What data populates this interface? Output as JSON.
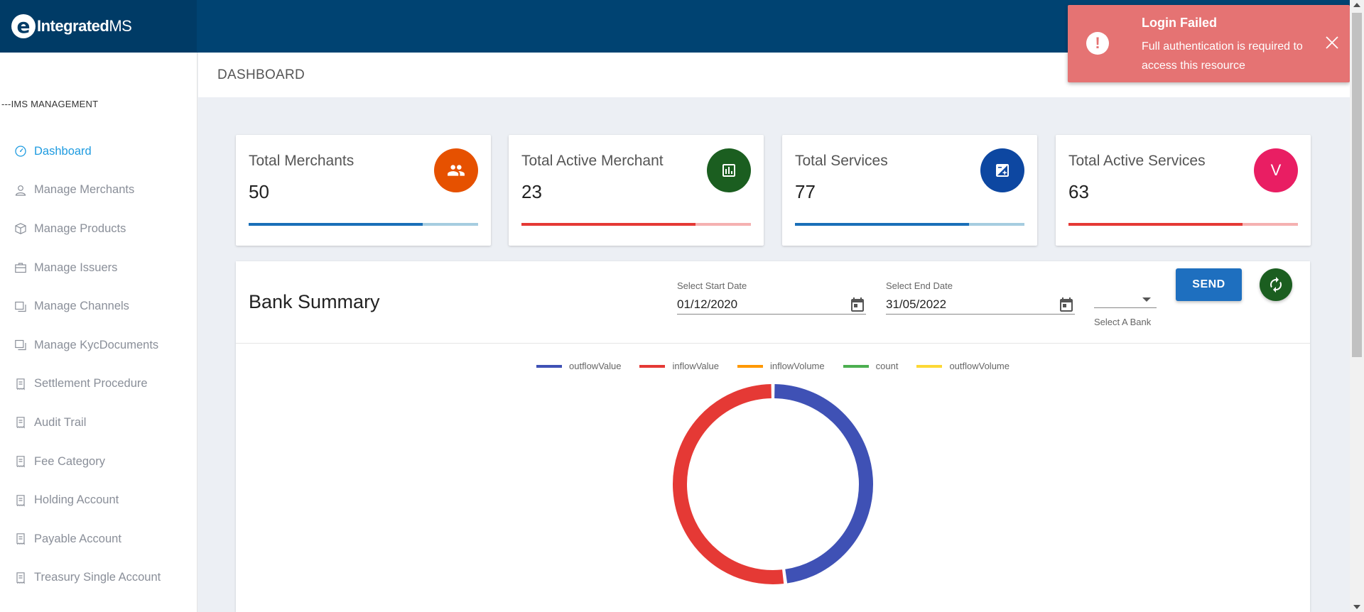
{
  "brand": {
    "mark": "e",
    "name_bold": "Integrated",
    "name_light": "MS"
  },
  "sidebar": {
    "heading": "---IMS MANAGEMENT",
    "items": [
      {
        "label": "Dashboard",
        "icon": "dashboard-icon",
        "active": true
      },
      {
        "label": "Manage Merchants",
        "icon": "user-icon"
      },
      {
        "label": "Manage Products",
        "icon": "box-icon"
      },
      {
        "label": "Manage Issuers",
        "icon": "briefcase-icon"
      },
      {
        "label": "Manage Channels",
        "icon": "copy-icon"
      },
      {
        "label": "Manage KycDocuments",
        "icon": "copy-icon"
      },
      {
        "label": "Settlement Procedure",
        "icon": "receipt-icon"
      },
      {
        "label": "Audit Trail",
        "icon": "receipt-icon"
      },
      {
        "label": "Fee Category",
        "icon": "receipt-icon"
      },
      {
        "label": "Holding Account",
        "icon": "receipt-icon"
      },
      {
        "label": "Payable Account",
        "icon": "receipt-icon"
      },
      {
        "label": "Treasury Single Account",
        "icon": "receipt-icon"
      }
    ]
  },
  "header": {
    "title": "DASHBOARD"
  },
  "cards": [
    {
      "title": "Total Merchants",
      "value": "50",
      "badge_color": "#e65100",
      "icon": "people-icon",
      "bar_color": "#1a6fb8",
      "bar_rest": "#a6cde0",
      "progress": 0.76
    },
    {
      "title": "Total Active Merchant",
      "value": "23",
      "badge_color": "#1b5e20",
      "icon": "chart-box-icon",
      "bar_color": "#e53935",
      "bar_rest": "#f5b1b1",
      "progress": 0.76
    },
    {
      "title": "Total Services",
      "value": "77",
      "badge_color": "#0d47a1",
      "icon": "plus-minus-box-icon",
      "bar_color": "#1a6fb8",
      "bar_rest": "#a6cde0",
      "progress": 0.76
    },
    {
      "title": "Total Active Services",
      "value": "63",
      "badge_color": "#e91e63",
      "badge_text": "V",
      "bar_color": "#e53935",
      "bar_rest": "#f5b1b1",
      "progress": 0.76
    }
  ],
  "bank_summary": {
    "title": "Bank Summary",
    "start_label": "Select Start Date",
    "start_value": "01/12/2020",
    "end_label": "Select End Date",
    "end_value": "31/05/2022",
    "bank_label": "Select A Bank",
    "bank_value": "",
    "send_label": "SEND"
  },
  "chart_data": {
    "type": "pie",
    "legend": [
      {
        "name": "outflowValue",
        "color": "#3f51b5"
      },
      {
        "name": "inflowValue",
        "color": "#e53935"
      },
      {
        "name": "inflowVolume",
        "color": "#ff9800"
      },
      {
        "name": "count",
        "color": "#4caf50"
      },
      {
        "name": "outflowVolume",
        "color": "#fdd835"
      }
    ],
    "slices": [
      {
        "name": "outflowValue",
        "value": 0.48,
        "color": "#3f51b5"
      },
      {
        "name": "inflowValue",
        "value": 0.52,
        "color": "#e53935"
      }
    ]
  },
  "toast": {
    "title": "Login Failed",
    "message": "Full authentication is required to access this resource"
  }
}
